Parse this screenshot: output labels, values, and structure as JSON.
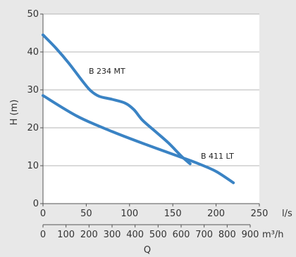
{
  "chart_data": {
    "type": "line",
    "ylabel": "H (m)",
    "xlabel": "Q",
    "x_units_primary": "l/s",
    "x_units_secondary": "m³/h",
    "x_primary_range": [
      0,
      250
    ],
    "x_primary_ticks": [
      0,
      50,
      100,
      150,
      200,
      250
    ],
    "x_secondary_range": [
      0,
      900
    ],
    "x_secondary_ticks": [
      0,
      100,
      200,
      300,
      400,
      500,
      600,
      700,
      800,
      900
    ],
    "ylim": [
      0,
      50
    ],
    "y_ticks": [
      0,
      10,
      20,
      30,
      40,
      50
    ],
    "grid": "horizontal",
    "series_color": "#3a83c4",
    "series": [
      {
        "name": "B 234 MT",
        "x": [
          0,
          15,
          30,
          45,
          55,
          65,
          80,
          95,
          105,
          115,
          130,
          145,
          160,
          170
        ],
        "y": [
          44.5,
          41,
          37,
          32.5,
          29.8,
          28.3,
          27.5,
          26.5,
          24.8,
          22,
          19,
          16,
          12.5,
          10.5
        ]
      },
      {
        "name": "B 411 LT",
        "x": [
          0,
          40,
          80,
          120,
          160,
          180,
          200,
          220
        ],
        "y": [
          28.5,
          23,
          19,
          15.5,
          12.2,
          10.5,
          8.5,
          5.5
        ]
      }
    ]
  }
}
